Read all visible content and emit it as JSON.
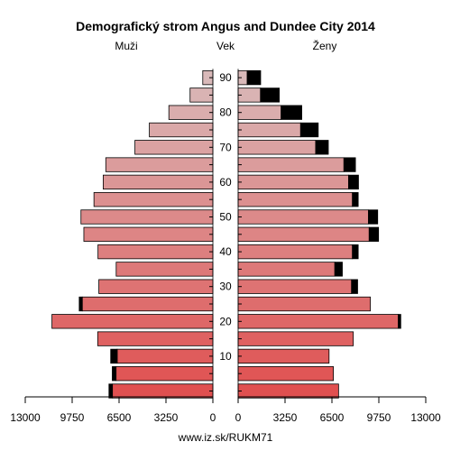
{
  "chart_data": {
    "type": "bar",
    "title": "Demografický strom Angus and Dundee City 2014",
    "left_label": "Muži",
    "center_label": "Vek",
    "right_label": "Ženy",
    "footer": "www.iz.sk/RUKM71",
    "xlim": [
      0,
      13000
    ],
    "x_tick_labels_left": [
      "13000",
      "9750",
      "6500",
      "3250",
      "0"
    ],
    "x_tick_labels_right": [
      "0",
      "3250",
      "6500",
      "9750",
      "13000"
    ],
    "x_tick_values": [
      13000,
      9750,
      6500,
      3250,
      0
    ],
    "age_tick_labels": [
      "10",
      "20",
      "30",
      "40",
      "50",
      "60",
      "70",
      "80",
      "90"
    ],
    "age_groups": [
      "0-4",
      "5-9",
      "10-14",
      "15-19",
      "20-24",
      "25-29",
      "30-34",
      "35-39",
      "40-44",
      "45-49",
      "50-54",
      "55-59",
      "60-64",
      "65-69",
      "70-74",
      "75-79",
      "80-84",
      "85-89",
      "90+"
    ],
    "series": [
      {
        "name": "Muži",
        "values": [
          6960,
          6710,
          6630,
          7980,
          11150,
          9050,
          7900,
          6700,
          7960,
          8940,
          9140,
          8240,
          7600,
          7420,
          5400,
          4400,
          3050,
          1580,
          700
        ]
      },
      {
        "name": "Muži (nadbytok)",
        "values": [
          240,
          260,
          450,
          0,
          0,
          210,
          0,
          0,
          0,
          0,
          0,
          0,
          0,
          0,
          0,
          0,
          0,
          0,
          0
        ]
      },
      {
        "name": "Ženy",
        "values": [
          6960,
          6600,
          6300,
          7980,
          11100,
          9160,
          7860,
          6700,
          7920,
          9080,
          9030,
          7920,
          7650,
          7330,
          5370,
          4330,
          2980,
          1550,
          630
        ]
      },
      {
        "name": "Ženy (nadbytok)",
        "values": [
          0,
          0,
          0,
          0,
          170,
          0,
          420,
          520,
          400,
          650,
          640,
          400,
          690,
          800,
          880,
          1220,
          1430,
          1300,
          930
        ]
      }
    ],
    "colors": {
      "bar_top": "#d9b9b9",
      "bar_bottom": "#e05050",
      "excess": "#000000",
      "stroke": "#000000"
    }
  }
}
